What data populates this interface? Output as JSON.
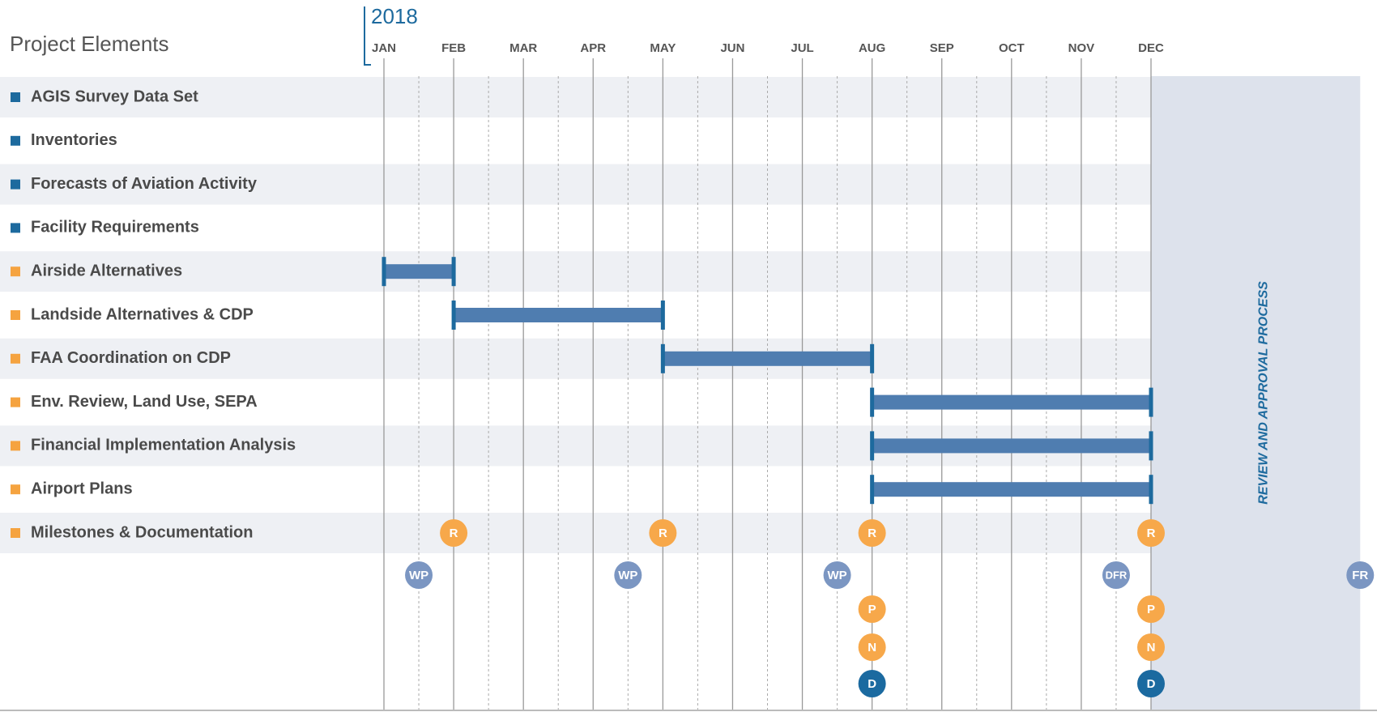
{
  "chart_data": {
    "type": "gantt",
    "title": "Project Elements",
    "year": "2018",
    "xlim": [
      0,
      11
    ],
    "xticks": [
      {
        "value": 0,
        "label": "JAN"
      },
      {
        "value": 1,
        "label": "FEB"
      },
      {
        "value": 2,
        "label": "MAR"
      },
      {
        "value": 3,
        "label": "APR"
      },
      {
        "value": 4,
        "label": "MAY"
      },
      {
        "value": 5,
        "label": "JUN"
      },
      {
        "value": 6,
        "label": "JUL"
      },
      {
        "value": 7,
        "label": "AUG"
      },
      {
        "value": 8,
        "label": "SEP"
      },
      {
        "value": 9,
        "label": "OCT"
      },
      {
        "value": 10,
        "label": "NOV"
      },
      {
        "value": 11,
        "label": "DEC"
      }
    ],
    "bar_color": "#4f7db0",
    "tasks": [
      {
        "name": "AGIS Survey Data Set",
        "color": "#1d6a9e"
      },
      {
        "name": "Inventories",
        "color": "#1d6a9e"
      },
      {
        "name": "Forecasts of Aviation Activity",
        "color": "#1d6a9e"
      },
      {
        "name": "Facility Requirements",
        "color": "#1d6a9e"
      },
      {
        "name": "Airside Alternatives",
        "color": "#f5a340",
        "start": 0,
        "end": 1
      },
      {
        "name": "Landside Alternatives & CDP",
        "color": "#f5a340",
        "start": 1,
        "end": 4
      },
      {
        "name": "FAA Coordination on CDP",
        "color": "#f5a340",
        "start": 4,
        "end": 7
      },
      {
        "name": "Env. Review, Land Use, SEPA",
        "color": "#f5a340",
        "start": 7,
        "end": 11
      },
      {
        "name": "Financial Implementation Analysis",
        "color": "#f5a340",
        "start": 7,
        "end": 11
      },
      {
        "name": "Airport Plans",
        "color": "#f5a340",
        "start": 7,
        "end": 11
      },
      {
        "name": "Milestones & Documentation",
        "color": "#f5a340"
      }
    ],
    "review": {
      "label": "REVIEW AND APPROVAL PROCESS",
      "start": 11,
      "end": 14
    },
    "milestones": [
      {
        "label": "R",
        "color": "#f7a84a",
        "x": [
          1,
          4,
          7,
          11
        ]
      },
      {
        "label": "WP",
        "color": "#7b96c2",
        "x": [
          0.5,
          3.5,
          6.5
        ]
      },
      {
        "label": "DFR",
        "color": "#7b96c2",
        "x": [
          10.5
        ]
      },
      {
        "label": "FR",
        "color": "#7b96c2",
        "x": [
          14
        ]
      },
      {
        "label": "P",
        "color": "#f7a84a",
        "x": [
          7,
          11
        ]
      },
      {
        "label": "N",
        "color": "#f7a84a",
        "x": [
          7,
          11
        ]
      },
      {
        "label": "D",
        "color": "#1b6aa0",
        "x": [
          7,
          11
        ]
      }
    ]
  }
}
